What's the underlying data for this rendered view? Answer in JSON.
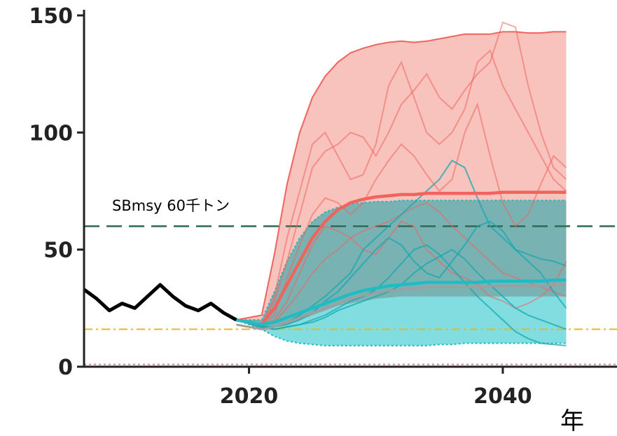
{
  "chart_data": {
    "type": "line",
    "title": "",
    "xlabel": "年",
    "ylabel": "",
    "xlim": [
      2007,
      2049
    ],
    "ylim": [
      0,
      150
    ],
    "x_ticks": [
      2020,
      2040
    ],
    "y_ticks": [
      0,
      50,
      100,
      150
    ],
    "grid": false,
    "colors": {
      "historical": "#000000",
      "red": "#f0645e",
      "red_band": "#f5a19a",
      "teal": "#1fbcc4",
      "teal_band": "#2fc6cd",
      "sbmsy_line": "#2e6b52",
      "limit_line": "#e6b820",
      "ban_line": "#cf8a94",
      "grey_median": "#9e9e9e"
    },
    "reference_lines": [
      {
        "name": "SBmsy 60千トン",
        "value": 60,
        "style": "dashed",
        "color": "#2e6b52"
      },
      {
        "name": "",
        "value": 16,
        "style": "dashdot",
        "color": "#e6b820"
      },
      {
        "name": "",
        "value": 1,
        "style": "dotted",
        "color": "#cf8a94"
      }
    ],
    "historical": {
      "x": [
        2007,
        2008,
        2009,
        2010,
        2011,
        2012,
        2013,
        2014,
        2015,
        2016,
        2017,
        2018,
        2019
      ],
      "y": [
        33,
        29,
        24,
        27,
        25,
        30,
        35,
        30,
        26,
        24,
        27,
        23,
        20
      ]
    },
    "projection_x": [
      2019,
      2021,
      2022,
      2023,
      2024,
      2025,
      2026,
      2027,
      2028,
      2029,
      2030,
      2031,
      2032,
      2033,
      2034,
      2035,
      2036,
      2037,
      2038,
      2039,
      2040,
      2041,
      2042,
      2043,
      2044,
      2045
    ],
    "series": [
      {
        "name": "",
        "color": "#f0645e",
        "median": [
          20,
          18,
          25,
          35,
          45,
          55,
          62,
          67,
          70,
          71.5,
          72.5,
          73,
          73.5,
          73.5,
          74,
          74,
          74,
          74,
          74,
          74,
          74.5,
          74.5,
          74.5,
          74.5,
          74.5,
          74.5
        ],
        "upper": [
          20,
          22,
          48,
          78,
          100,
          115,
          124,
          130,
          134,
          136,
          137.5,
          138.5,
          139,
          138.5,
          139,
          140,
          141,
          142,
          142,
          142,
          143,
          143,
          142.5,
          142.5,
          143,
          143
        ],
        "lower": [
          20,
          16,
          17,
          18,
          20,
          22,
          24,
          26,
          27,
          28,
          29,
          29.5,
          30,
          30,
          30,
          30,
          30,
          30,
          30,
          30,
          30,
          30,
          30,
          30,
          30,
          30
        ]
      },
      {
        "name": "",
        "color": "#1fbcc4",
        "median": [
          20,
          18,
          19,
          21,
          23,
          25,
          27,
          29,
          31,
          32.5,
          33.5,
          34.5,
          35,
          35.5,
          36,
          36,
          36,
          36,
          36,
          36.5,
          36.5,
          36.5,
          36.5,
          36.5,
          37,
          37
        ],
        "upper": [
          20,
          20,
          32,
          45,
          55,
          62,
          66,
          68,
          69.5,
          70,
          70.5,
          70.5,
          71,
          71,
          71,
          71,
          71,
          71,
          71,
          71,
          71,
          71,
          71,
          71,
          71,
          71
        ],
        "lower": [
          20,
          16,
          13,
          11,
          10,
          9.5,
          9,
          9,
          9,
          9,
          9,
          9,
          9,
          9,
          9,
          9.5,
          9.5,
          10,
          10,
          10,
          10,
          10,
          10,
          10,
          10,
          10
        ]
      }
    ],
    "red_trajectories": [
      {
        "y": [
          20,
          18,
          30,
          55,
          75,
          95,
          100,
          90,
          80,
          82,
          95,
          120,
          130,
          115,
          100,
          95,
          100,
          110,
          130,
          135,
          120,
          110,
          100,
          90,
          80,
          75
        ]
      },
      {
        "y": [
          20,
          18,
          28,
          45,
          65,
          85,
          92,
          95,
          100,
          98,
          90,
          100,
          112,
          118,
          125,
          115,
          110,
          118,
          125,
          130,
          147,
          145,
          120,
          100,
          85,
          80
        ]
      },
      {
        "y": [
          20,
          17,
          22,
          38,
          52,
          65,
          72,
          70,
          65,
          70,
          80,
          88,
          95,
          90,
          82,
          75,
          80,
          100,
          112,
          90,
          70,
          60,
          65,
          78,
          90,
          85
        ]
      },
      {
        "y": [
          20,
          17,
          20,
          28,
          40,
          52,
          60,
          58,
          55,
          50,
          48,
          55,
          62,
          60,
          50,
          45,
          40,
          38,
          35,
          30,
          28,
          25,
          27,
          30,
          35,
          45
        ]
      },
      {
        "y": [
          20,
          17,
          19,
          25,
          32,
          40,
          46,
          50,
          55,
          58,
          60,
          62,
          65,
          68,
          70,
          66,
          60,
          55,
          50,
          45,
          40,
          38,
          36,
          34,
          32,
          30
        ]
      }
    ],
    "teal_trajectories": [
      {
        "y": [
          20,
          17,
          17,
          18,
          20,
          23,
          28,
          32,
          38,
          44,
          50,
          55,
          52,
          45,
          40,
          38,
          45,
          52,
          60,
          62,
          58,
          50,
          45,
          40,
          32,
          25
        ]
      },
      {
        "y": [
          20,
          17,
          17,
          19,
          22,
          26,
          30,
          35,
          40,
          50,
          55,
          60,
          65,
          70,
          75,
          80,
          88,
          85,
          72,
          60,
          55,
          50,
          48,
          46,
          45,
          43
        ]
      },
      {
        "y": [
          20,
          17,
          16,
          17,
          18,
          20,
          22,
          25,
          28,
          30,
          33,
          38,
          44,
          50,
          52,
          48,
          42,
          36,
          30,
          25,
          20,
          15,
          12,
          10,
          9.5,
          9
        ]
      },
      {
        "y": [
          20,
          17,
          16,
          17,
          18,
          19,
          21,
          24,
          26,
          28,
          30,
          32,
          35,
          40,
          44,
          47,
          50,
          46,
          40,
          35,
          30,
          25,
          22,
          20,
          18,
          16
        ]
      }
    ]
  },
  "annotation": {
    "label": "SBmsy 60千トン"
  },
  "axis_label": {
    "x": "年"
  }
}
